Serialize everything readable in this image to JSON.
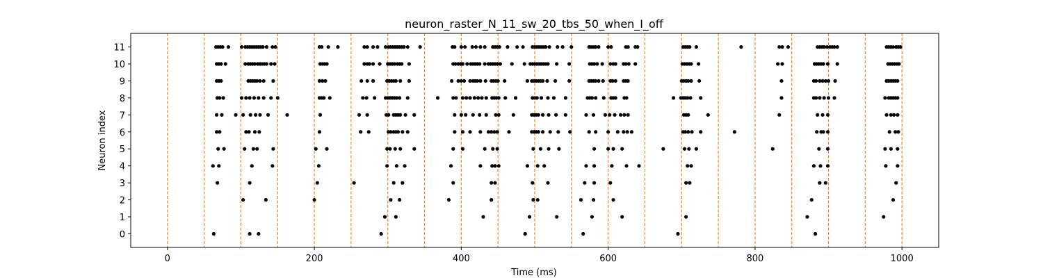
{
  "chart_data": {
    "type": "scatter",
    "title": "neuron_raster_N_11_sw_20_tbs_50_when_I_off",
    "xlabel": "Time (ms)",
    "ylabel": "Neuron index",
    "xlim": [
      -50,
      1050
    ],
    "ylim": [
      -0.8,
      11.8
    ],
    "xticks": [
      0,
      200,
      400,
      600,
      800,
      1000
    ],
    "yticks": [
      0,
      1,
      2,
      3,
      4,
      5,
      6,
      7,
      8,
      9,
      10,
      11
    ],
    "grid": false,
    "point_color": "#000000",
    "vline_color": "#ff7f0e",
    "vline_style": "dashed",
    "vlines_x": [
      0,
      50,
      100,
      150,
      200,
      250,
      300,
      350,
      400,
      450,
      500,
      550,
      600,
      650,
      700,
      750,
      800,
      850,
      900,
      950,
      1000
    ],
    "series": [
      {
        "neuron": 11,
        "times": [
          66,
          69,
          72,
          75,
          83,
          101,
          106,
          109,
          112,
          115,
          118,
          121,
          124,
          127,
          130,
          135,
          143,
          147,
          207,
          210,
          219,
          232,
          268,
          272,
          280,
          286,
          297,
          301,
          304,
          307,
          310,
          313,
          316,
          319,
          322,
          327,
          344,
          388,
          391,
          400,
          405,
          415,
          420,
          426,
          432,
          443,
          446,
          449,
          452,
          463,
          476,
          484,
          497,
          500,
          503,
          506,
          509,
          512,
          515,
          520,
          531,
          538,
          550,
          574,
          577,
          580,
          583,
          587,
          600,
          604,
          624,
          627,
          637,
          640,
          702,
          705,
          708,
          711,
          720,
          781,
          833,
          837,
          845,
          885,
          888,
          891,
          894,
          898,
          902,
          905,
          908,
          912,
          979,
          982,
          985,
          988,
          992,
          995,
          998
        ]
      },
      {
        "neuron": 10,
        "times": [
          67,
          70,
          73,
          79,
          106,
          110,
          113,
          116,
          119,
          123,
          126,
          129,
          132,
          135,
          141,
          146,
          208,
          211,
          214,
          217,
          268,
          272,
          275,
          280,
          289,
          300,
          303,
          306,
          309,
          313,
          316,
          319,
          329,
          389,
          392,
          396,
          399,
          402,
          408,
          413,
          416,
          419,
          422,
          425,
          432,
          437,
          440,
          443,
          446,
          449,
          453,
          469,
          486,
          494,
          497,
          500,
          503,
          506,
          509,
          512,
          515,
          518,
          530,
          547,
          575,
          578,
          581,
          585,
          592,
          603,
          607,
          610,
          621,
          624,
          628,
          637,
          701,
          704,
          707,
          710,
          713,
          723,
          831,
          837,
          881,
          884,
          887,
          890,
          893,
          899,
          912,
          981,
          984,
          987,
          990,
          993,
          996
        ]
      },
      {
        "neuron": 9,
        "times": [
          67,
          70,
          73,
          110,
          113,
          116,
          119,
          122,
          126,
          131,
          144,
          207,
          211,
          215,
          264,
          272,
          280,
          299,
          302,
          305,
          308,
          311,
          317,
          329,
          387,
          396,
          400,
          404,
          412,
          416,
          419,
          422,
          426,
          433,
          441,
          444,
          447,
          450,
          459,
          490,
          496,
          499,
          502,
          505,
          508,
          511,
          517,
          528,
          547,
          574,
          577,
          580,
          583,
          587,
          593,
          603,
          606,
          610,
          621,
          624,
          627,
          700,
          703,
          706,
          709,
          713,
          724,
          836,
          880,
          883,
          888,
          892,
          896,
          900,
          909,
          979,
          982,
          985,
          988,
          991,
          994
        ]
      },
      {
        "neuron": 8,
        "times": [
          68,
          71,
          76,
          101,
          107,
          112,
          118,
          124,
          131,
          141,
          150,
          207,
          210,
          213,
          221,
          266,
          271,
          282,
          297,
          300,
          303,
          306,
          309,
          312,
          316,
          327,
          368,
          389,
          393,
          402,
          407,
          412,
          418,
          423,
          428,
          434,
          442,
          445,
          448,
          451,
          460,
          474,
          497,
          500,
          503,
          509,
          518,
          526,
          542,
          572,
          575,
          578,
          583,
          594,
          604,
          607,
          610,
          622,
          625,
          689,
          699,
          702,
          705,
          708,
          712,
          726,
          836,
          880,
          883,
          888,
          894,
          900,
          908,
          977,
          982,
          985,
          988,
          991,
          994
        ]
      },
      {
        "neuron": 7,
        "times": [
          67,
          74,
          93,
          103,
          113,
          120,
          126,
          137,
          163,
          208,
          261,
          272,
          298,
          301,
          308,
          311,
          314,
          317,
          324,
          336,
          391,
          400,
          406,
          416,
          425,
          434,
          447,
          451,
          471,
          496,
          499,
          502,
          505,
          511,
          519,
          529,
          542,
          570,
          580,
          596,
          602,
          609,
          617,
          622,
          627,
          703,
          706,
          709,
          736,
          833,
          885,
          892,
          899,
          979,
          985,
          989,
          994
        ]
      },
      {
        "neuron": 6,
        "times": [
          67,
          71,
          107,
          111,
          119,
          125,
          207,
          263,
          274,
          301,
          304,
          308,
          311,
          314,
          320,
          327,
          391,
          402,
          412,
          426,
          437,
          441,
          445,
          449,
          465,
          496,
          499,
          502,
          505,
          511,
          521,
          532,
          548,
          574,
          583,
          600,
          613,
          621,
          626,
          632,
          702,
          705,
          709,
          714,
          726,
          772,
          884,
          890,
          893,
          899,
          983,
          991,
          995
        ]
      },
      {
        "neuron": 5,
        "times": [
          69,
          77,
          105,
          117,
          122,
          144,
          202,
          217,
          299,
          303,
          310,
          317,
          336,
          389,
          402,
          432,
          443,
          449,
          498,
          508,
          519,
          533,
          581,
          600,
          607,
          619,
          675,
          704,
          710,
          720,
          824,
          887,
          899,
          977,
          985,
          994
        ]
      },
      {
        "neuron": 4,
        "times": [
          62,
          70,
          115,
          143,
          206,
          299,
          312,
          323,
          386,
          426,
          442,
          446,
          451,
          490,
          504,
          513,
          570,
          581,
          605,
          625,
          642,
          708,
          713,
          880,
          889,
          899,
          978,
          994
        ]
      },
      {
        "neuron": 3,
        "times": [
          68,
          112,
          204,
          254,
          308,
          320,
          389,
          441,
          446,
          497,
          518,
          568,
          581,
          603,
          706,
          711,
          888,
          896,
          992
        ]
      },
      {
        "neuron": 2,
        "times": [
          103,
          134,
          200,
          304,
          316,
          383,
          441,
          498,
          504,
          563,
          580,
          607,
          877,
          988
        ]
      },
      {
        "neuron": 1,
        "times": [
          296,
          311,
          430,
          493,
          530,
          578,
          619,
          706,
          871,
          975
        ]
      },
      {
        "neuron": 0,
        "times": [
          63,
          112,
          124,
          291,
          487,
          566,
          695,
          882
        ]
      }
    ]
  }
}
